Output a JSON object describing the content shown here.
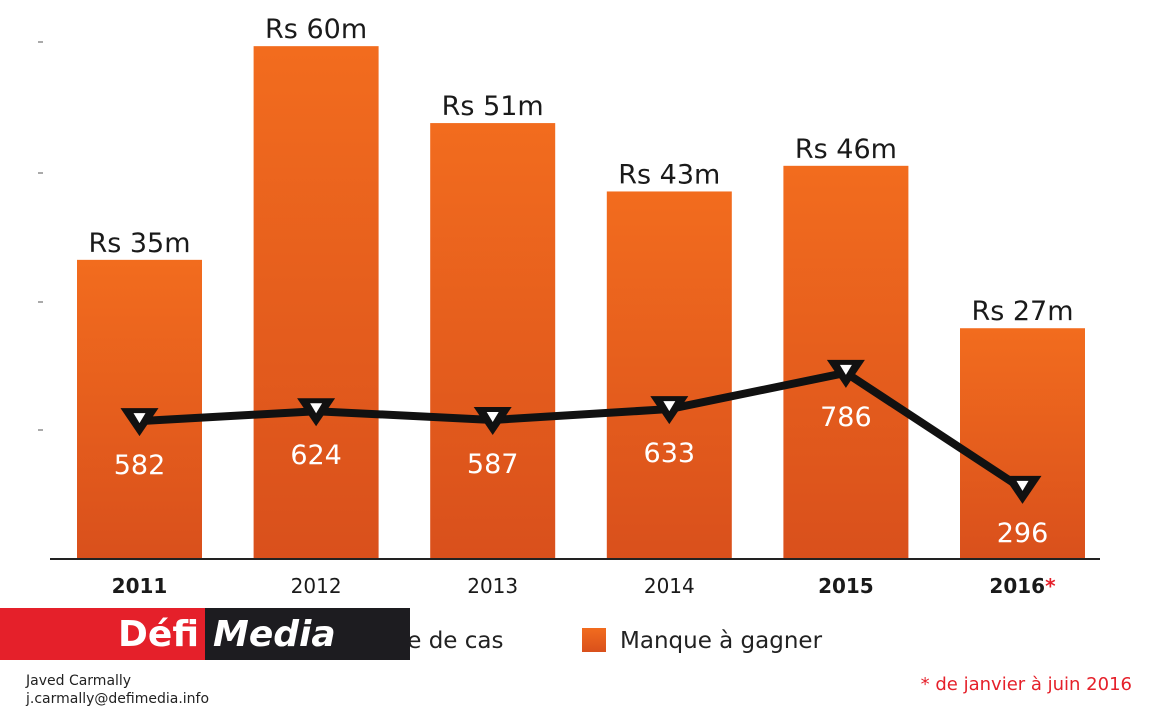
{
  "chart_data": {
    "type": "bar",
    "categories": [
      "2011",
      "2012",
      "2013",
      "2014",
      "2015",
      "2016"
    ],
    "bold_categories": [
      "2011",
      "2015",
      "2016"
    ],
    "category_suffix": {
      "2016": "*"
    },
    "series": [
      {
        "name": "Manque à gagner",
        "type": "bar",
        "unit": "Rs m",
        "values": [
          35,
          60,
          51,
          43,
          46,
          27
        ],
        "labels": [
          "Rs 35m",
          "Rs 60m",
          "Rs 51m",
          "Rs 43m",
          "Rs 46m",
          "Rs 27m"
        ]
      },
      {
        "name": "Nombre de cas",
        "type": "line",
        "values": [
          582,
          624,
          587,
          633,
          786,
          296
        ],
        "labels": [
          "582",
          "624",
          "587",
          "633",
          "786",
          "296"
        ]
      }
    ],
    "ylim_bar": [
      0,
      65.4
    ],
    "ylim_line": [
      0,
      2360
    ],
    "legend_position": "bottom",
    "note": "* de janvier à juin 2016"
  },
  "colors": {
    "bar_top": "#f26c1e",
    "bar_bottom": "#d9501c",
    "line": "#111111",
    "note": "#e5202a",
    "logo_red": "#e5202a",
    "logo_dark": "#1d1c20"
  },
  "logo": {
    "part1": "Défi",
    "part2": "Media"
  },
  "credit": {
    "name": "Javed Carmally",
    "email": "j.carmally@defimedia.info"
  }
}
